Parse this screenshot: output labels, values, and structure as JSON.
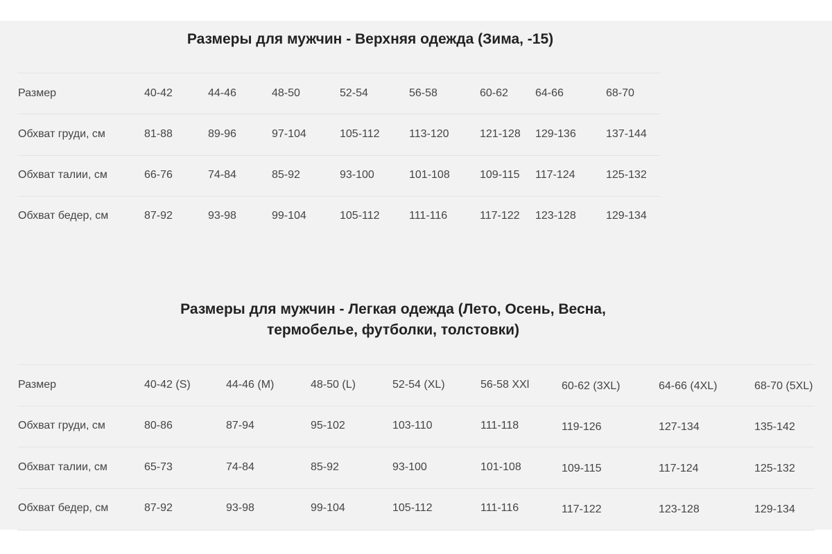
{
  "winter": {
    "title": "Размеры для мужчин - Верхняя одежда (Зима, -15)",
    "rows": [
      [
        "Размер",
        "40-42",
        "44-46",
        "48-50",
        "52-54",
        "56-58",
        "60-62",
        "64-66",
        "68-70"
      ],
      [
        "Обхват груди, см",
        "81-88",
        "89-96",
        "97-104",
        "105-112",
        "113-120",
        "121-128",
        "129-136",
        "137-144"
      ],
      [
        "Обхват талии, см",
        "66-76",
        "74-84",
        "85-92",
        "93-100",
        "101-108",
        "109-115",
        "117-124",
        "125-132"
      ],
      [
        "Обхват бедер, см",
        "87-92",
        "93-98",
        "99-104",
        "105-112",
        "111-116",
        "117-122",
        "123-128",
        "129-134"
      ]
    ]
  },
  "light": {
    "title_line1": "Размеры для мужчин - Легкая одежда (Лето, Осень, Весна,",
    "title_line2": "термобелье, футболки, толстовки)",
    "rows": [
      [
        "Размер",
        "40-42 (S)",
        "44-46 (M)",
        "48-50 (L)",
        "52-54 (XL)",
        "56-58  XXl",
        "60-62 (3XL)",
        "64-66 (4XL)",
        "68-70 (5XL)"
      ],
      [
        "Обхват груди, см",
        "80-86",
        "87-94",
        "95-102",
        "103-110",
        "111-118",
        "119-126",
        "127-134",
        "135-142"
      ],
      [
        "Обхват талии, см",
        "65-73",
        "74-84",
        "85-92",
        "93-100",
        "101-108",
        "109-115",
        "117-124",
        "125-132"
      ],
      [
        "Обхват бедер, см",
        "87-92",
        "93-98",
        "99-104",
        "105-112",
        "111-116",
        "117-122",
        "123-128",
        "129-134"
      ]
    ]
  }
}
